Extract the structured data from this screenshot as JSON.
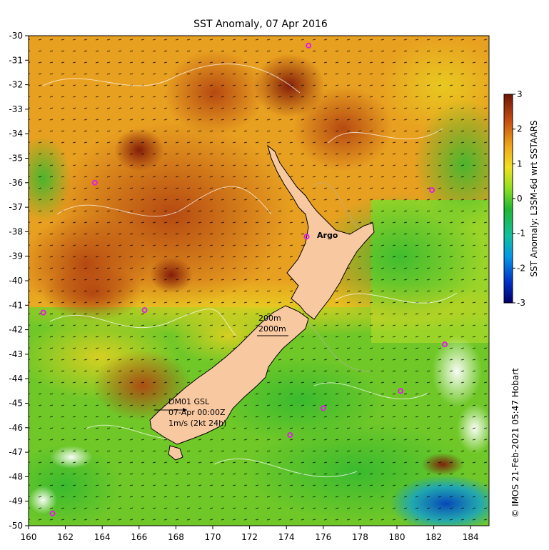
{
  "title": "SST Anomaly, 07 Apr 2016",
  "credit": "© IMOS 21-Feb-2021 05:47 Hobart",
  "colorbar": {
    "label": "SST Anomaly: L3SM-6d wrt SSTAARS",
    "ticks": [
      "3",
      "2",
      "1",
      "0",
      "-1",
      "-2",
      "-3"
    ],
    "colors": [
      "#00007a",
      "#0030c8",
      "#0090e0",
      "#10c0c0",
      "#18b838",
      "#40d020",
      "#a0e020",
      "#f0e020",
      "#f0a818",
      "#d06010",
      "#a83808",
      "#7a1a05"
    ]
  },
  "axes": {
    "x_ticks": [
      "160",
      "162",
      "164",
      "166",
      "168",
      "170",
      "172",
      "174",
      "176",
      "178",
      "180",
      "182",
      "184"
    ],
    "y_ticks": [
      "-30",
      "-31",
      "-32",
      "-33",
      "-34",
      "-35",
      "-36",
      "-37",
      "-38",
      "-39",
      "-40",
      "-41",
      "-42",
      "-43",
      "-44",
      "-45",
      "-46",
      "-47",
      "-48",
      "-49",
      "-50"
    ]
  },
  "annotations": {
    "argo_label": "Argo",
    "isobath_200": "200m",
    "isobath_2000": "2000m",
    "station_name": "DM01 GSL",
    "timestamp": "07-Apr 00:00Z",
    "scale": "1m/s (2kt 24h)"
  },
  "argo_floats": [
    {
      "lon": 175.2,
      "lat": -30.4
    },
    {
      "lon": 163.6,
      "lat": -36.0
    },
    {
      "lon": 181.9,
      "lat": -36.3
    },
    {
      "lon": 175.1,
      "lat": -38.2
    },
    {
      "lon": 160.8,
      "lat": -41.3
    },
    {
      "lon": 166.3,
      "lat": -41.2
    },
    {
      "lon": 182.6,
      "lat": -42.6
    },
    {
      "lon": 180.2,
      "lat": -44.5
    },
    {
      "lon": 176.0,
      "lat": -45.2
    },
    {
      "lon": 174.2,
      "lat": -46.3
    },
    {
      "lon": 161.3,
      "lat": -49.5
    }
  ],
  "colors": {
    "land": "#f8c8a0",
    "float_marker": "#e020e0",
    "warm": "#c86010",
    "mid": "#e8a020",
    "cool": "#60c820"
  }
}
